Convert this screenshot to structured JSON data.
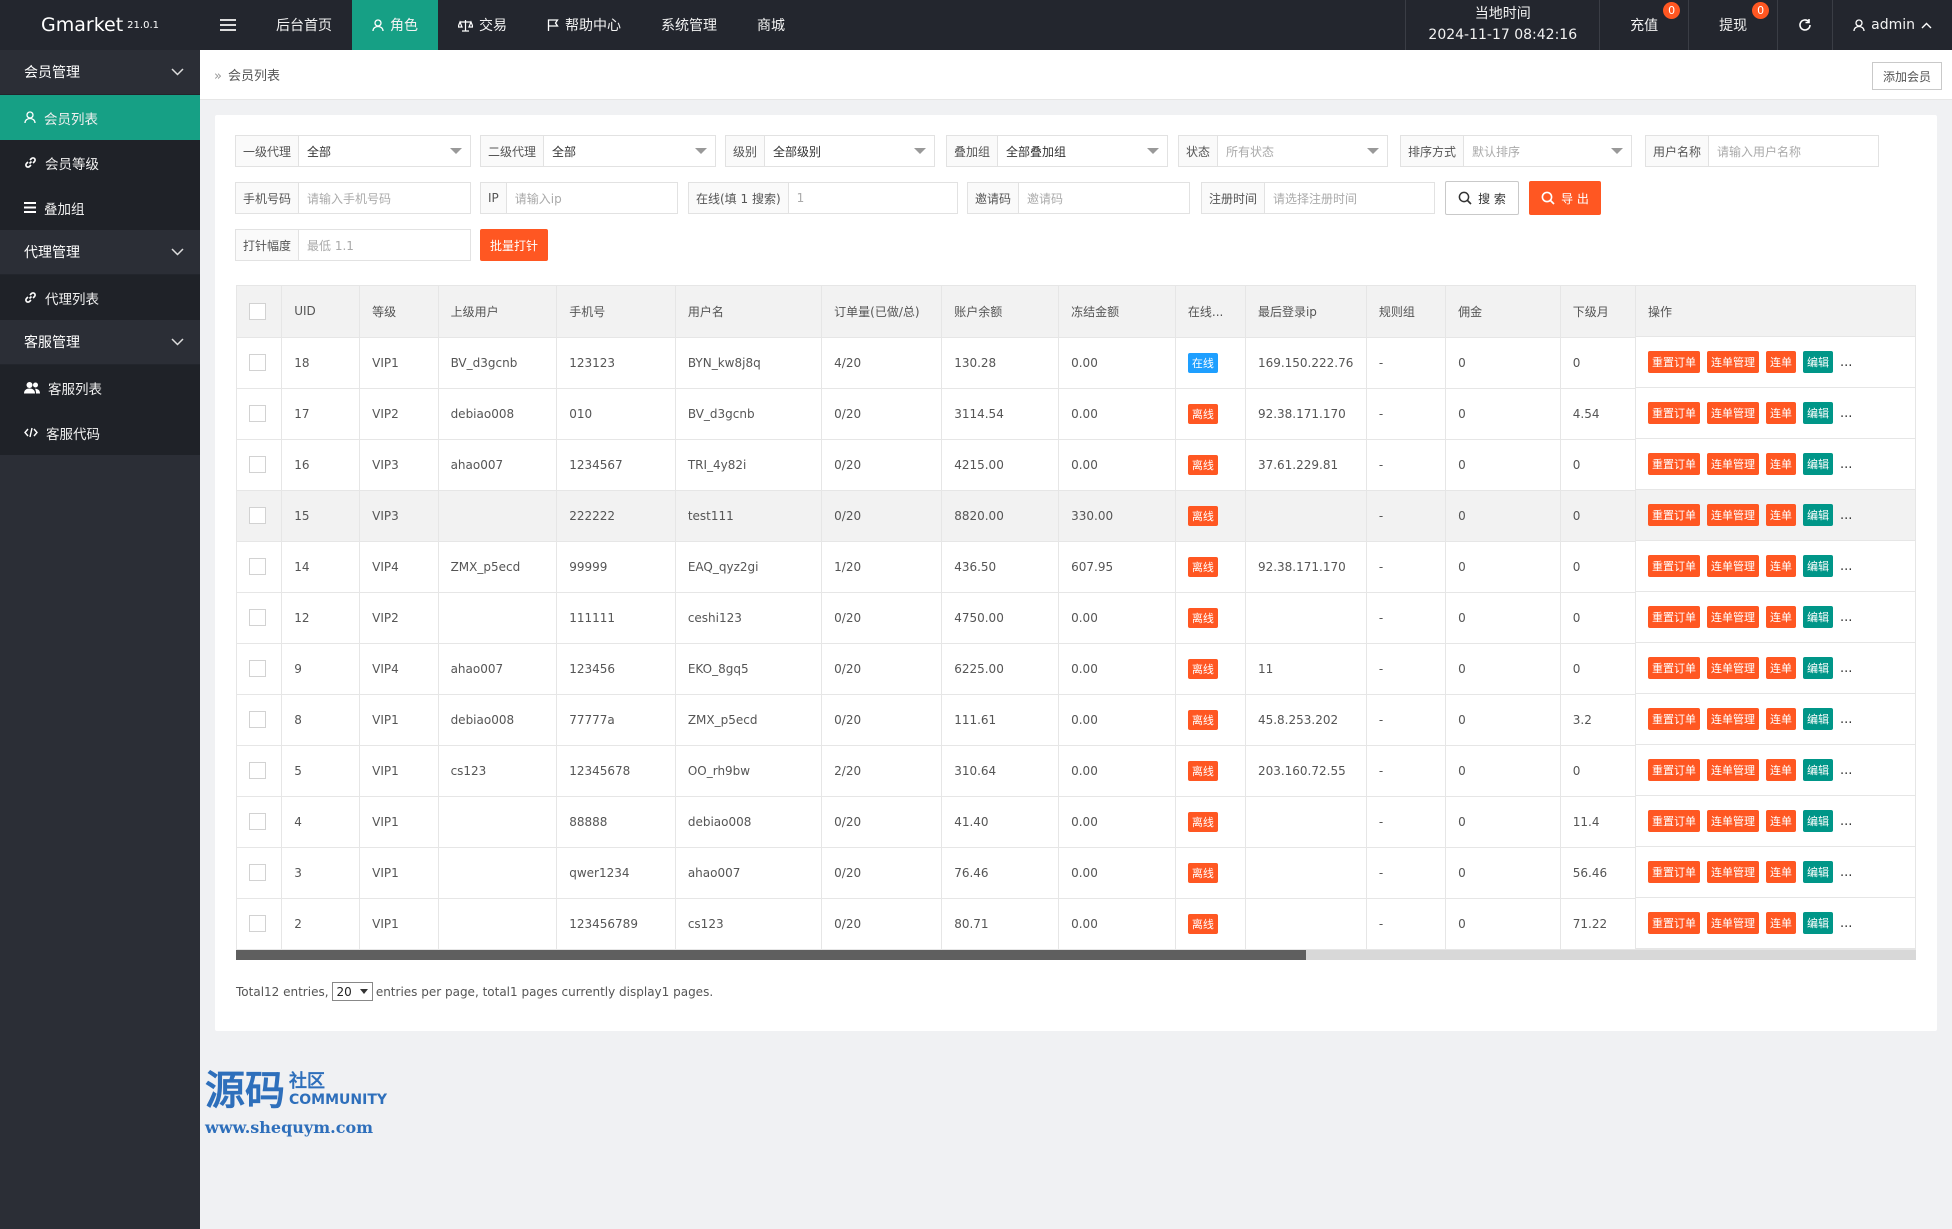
{
  "header": {
    "brand": "Gmarket",
    "version": "21.0.1",
    "nav": [
      {
        "label": "后台首页",
        "icon": ""
      },
      {
        "label": "角色",
        "icon": "user-icon"
      },
      {
        "label": "交易",
        "icon": "scale-icon"
      },
      {
        "label": "帮助中心",
        "icon": "flag-icon"
      },
      {
        "label": "系统管理",
        "icon": ""
      },
      {
        "label": "商城",
        "icon": ""
      }
    ],
    "clock_label": "当地时间",
    "clock_value": "2024-11-17 08:42:16",
    "recharge": "充值",
    "recharge_badge": "0",
    "withdraw": "提现",
    "withdraw_badge": "0",
    "user": "admin"
  },
  "sidebar": {
    "groups": [
      {
        "label": "会员管理",
        "items": [
          {
            "label": "会员列表",
            "icon": "user-icon",
            "active": true
          },
          {
            "label": "会员等级",
            "icon": "link-icon"
          },
          {
            "label": "叠加组",
            "icon": "list-icon"
          }
        ]
      },
      {
        "label": "代理管理",
        "items": [
          {
            "label": "代理列表",
            "icon": "link-icon"
          }
        ]
      },
      {
        "label": "客服管理",
        "items": [
          {
            "label": "客服列表",
            "icon": "users-icon"
          },
          {
            "label": "客服代码",
            "icon": "code-icon"
          }
        ]
      }
    ]
  },
  "breadcrumb": {
    "current": "会员列表",
    "add_button": "添加会员"
  },
  "filters": {
    "agent1": {
      "label": "一级代理",
      "value": "全部"
    },
    "agent2": {
      "label": "二级代理",
      "value": "全部"
    },
    "level": {
      "label": "级别",
      "value": "全部级别"
    },
    "group": {
      "label": "叠加组",
      "value": "全部叠加组"
    },
    "status": {
      "label": "状态",
      "placeholder": "所有状态"
    },
    "sort": {
      "label": "排序方式",
      "placeholder": "默认排序"
    },
    "username": {
      "label": "用户名称",
      "placeholder": "请输入用户名称"
    },
    "phone": {
      "label": "手机号码",
      "placeholder": "请输入手机号码"
    },
    "ip": {
      "label": "IP",
      "placeholder": "请输入ip"
    },
    "online": {
      "label": "在线(填 1 搜索)",
      "placeholder": "1"
    },
    "invite": {
      "label": "邀请码",
      "placeholder": "邀请码"
    },
    "regtime": {
      "label": "注册时间",
      "placeholder": "请选择注册时间"
    },
    "search_button": "搜 索",
    "export_button": "导 出",
    "needle": {
      "label": "打针幅度",
      "placeholder": "最低 1.1"
    },
    "batch_button": "批量打针"
  },
  "table": {
    "columns": [
      "UID",
      "等级",
      "上级用户",
      "手机号",
      "用户名",
      "订单量(已做/总)",
      "账户余额",
      "冻结金额",
      "在线...",
      "最后登录ip",
      "规则组",
      "佣金",
      "下级月"
    ],
    "op_header": "操作",
    "op_buttons": [
      "重置订单",
      "连单管理",
      "连单",
      "编辑"
    ],
    "more": "...",
    "rows": [
      {
        "uid": "18",
        "level": "VIP1",
        "parent": "BV_d3gcnb",
        "phone": "123123",
        "username": "BYN_kw8j8q",
        "orders": "4/20",
        "balance": "130.28",
        "frozen": "0.00",
        "online": "在线",
        "is_online": true,
        "ip": "169.150.222.76",
        "rule": "-",
        "commission": "0",
        "sub": "0"
      },
      {
        "uid": "17",
        "level": "VIP2",
        "parent": "debiao008",
        "phone": "010",
        "username": "BV_d3gcnb",
        "orders": "0/20",
        "balance": "3114.54",
        "frozen": "0.00",
        "online": "离线",
        "is_online": false,
        "ip": "92.38.171.170",
        "rule": "-",
        "commission": "0",
        "sub": "4.54"
      },
      {
        "uid": "16",
        "level": "VIP3",
        "parent": "ahao007",
        "phone": "1234567",
        "username": "TRI_4y82i",
        "orders": "0/20",
        "balance": "4215.00",
        "frozen": "0.00",
        "online": "离线",
        "is_online": false,
        "ip": "37.61.229.81",
        "rule": "-",
        "commission": "0",
        "sub": "0"
      },
      {
        "uid": "15",
        "level": "VIP3",
        "parent": "",
        "phone": "222222",
        "username": "test111",
        "orders": "0/20",
        "balance": "8820.00",
        "frozen": "330.00",
        "online": "离线",
        "is_online": false,
        "ip": "",
        "rule": "-",
        "commission": "0",
        "sub": "0"
      },
      {
        "uid": "14",
        "level": "VIP4",
        "parent": "ZMX_p5ecd",
        "phone": "99999",
        "username": "EAQ_qyz2gi",
        "orders": "1/20",
        "balance": "436.50",
        "frozen": "607.95",
        "online": "离线",
        "is_online": false,
        "ip": "92.38.171.170",
        "rule": "-",
        "commission": "0",
        "sub": "0"
      },
      {
        "uid": "12",
        "level": "VIP2",
        "parent": "",
        "phone": "111111",
        "username": "ceshi123",
        "orders": "0/20",
        "balance": "4750.00",
        "frozen": "0.00",
        "online": "离线",
        "is_online": false,
        "ip": "",
        "rule": "-",
        "commission": "0",
        "sub": "0"
      },
      {
        "uid": "9",
        "level": "VIP4",
        "parent": "ahao007",
        "phone": "123456",
        "username": "EKO_8gq5",
        "orders": "0/20",
        "balance": "6225.00",
        "frozen": "0.00",
        "online": "离线",
        "is_online": false,
        "ip": "11",
        "rule": "-",
        "commission": "0",
        "sub": "0"
      },
      {
        "uid": "8",
        "level": "VIP1",
        "parent": "debiao008",
        "phone": "77777a",
        "username": "ZMX_p5ecd",
        "orders": "0/20",
        "balance": "111.61",
        "frozen": "0.00",
        "online": "离线",
        "is_online": false,
        "ip": "45.8.253.202",
        "rule": "-",
        "commission": "0",
        "sub": "3.2"
      },
      {
        "uid": "5",
        "level": "VIP1",
        "parent": "cs123",
        "phone": "12345678",
        "username": "OO_rh9bw",
        "orders": "2/20",
        "balance": "310.64",
        "frozen": "0.00",
        "online": "离线",
        "is_online": false,
        "ip": "203.160.72.55",
        "rule": "-",
        "commission": "0",
        "sub": "0"
      },
      {
        "uid": "4",
        "level": "VIP1",
        "parent": "",
        "phone": "88888",
        "username": "debiao008",
        "orders": "0/20",
        "balance": "41.40",
        "frozen": "0.00",
        "online": "离线",
        "is_online": false,
        "ip": "",
        "rule": "-",
        "commission": "0",
        "sub": "11.4"
      },
      {
        "uid": "3",
        "level": "VIP1",
        "parent": "",
        "phone": "qwer1234",
        "username": "ahao007",
        "orders": "0/20",
        "balance": "76.46",
        "frozen": "0.00",
        "online": "离线",
        "is_online": false,
        "ip": "",
        "rule": "-",
        "commission": "0",
        "sub": "56.46"
      },
      {
        "uid": "2",
        "level": "VIP1",
        "parent": "",
        "phone": "123456789",
        "username": "cs123",
        "orders": "0/20",
        "balance": "80.71",
        "frozen": "0.00",
        "online": "离线",
        "is_online": false,
        "ip": "",
        "rule": "-",
        "commission": "0",
        "sub": "71.22"
      }
    ],
    "highlight_row": 3
  },
  "pagination": {
    "total_prefix": "Total12 entries,",
    "per_page": "20",
    "suffix": "entries per page, total1 pages currently display1 pages."
  },
  "watermark": {
    "big": "源码",
    "small": "社区",
    "en": "COMMUNITY",
    "url": "www.shequym.com"
  },
  "colors": {
    "accent": "#16a085",
    "orange": "#ff5722",
    "teal": "#009688",
    "blue": "#1e9fff",
    "topbar": "#23262e",
    "sidebar": "#2b2e36"
  }
}
